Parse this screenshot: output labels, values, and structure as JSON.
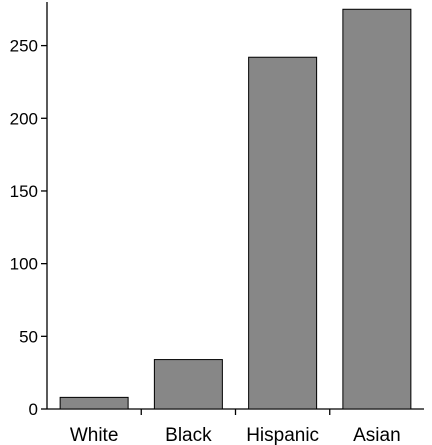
{
  "chart_data": {
    "type": "bar",
    "title": "",
    "xlabel": "",
    "ylabel": "",
    "categories": [
      "White",
      "Black",
      "Hispanic",
      "Asian"
    ],
    "values": [
      8,
      34,
      242,
      275
    ],
    "ylim": [
      0,
      280
    ],
    "yticks": [
      0,
      50,
      100,
      150,
      200,
      250
    ],
    "grid": false,
    "legend": "none",
    "bar_color": "#878787",
    "bar_edge_color": "#000000"
  }
}
